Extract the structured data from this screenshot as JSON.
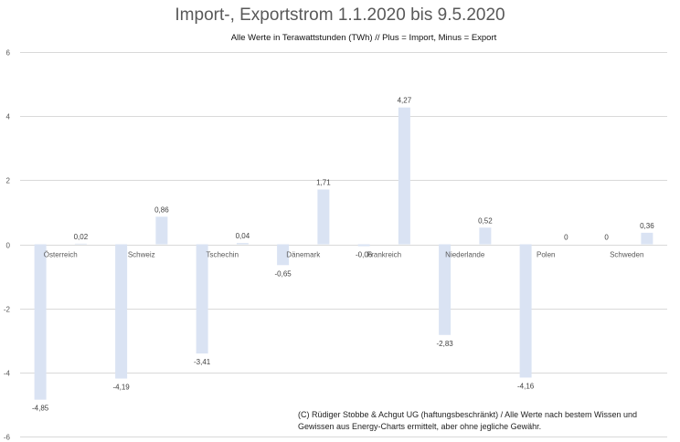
{
  "chart_data": {
    "type": "bar",
    "title": "Import-, Exportstrom 1.1.2020 bis 9.5.2020",
    "subtitle": "Alle Werte in Terawattstunden (TWh) // Plus = Import, Minus = Export",
    "xlabel": "",
    "ylabel": "",
    "ylim": [
      -6,
      6
    ],
    "yticks": [
      6,
      4,
      2,
      0,
      -2,
      -4,
      -6
    ],
    "ytick_labels": [
      "6",
      "4",
      "2",
      "0",
      "-2",
      "-4",
      "-6"
    ],
    "grid": true,
    "bar_color": "#dae3f3",
    "categories": [
      "Österreich",
      "Schweiz",
      "Tschechin",
      "Dänemark",
      "Frankreich",
      "Niederlande",
      "Polen",
      "Schweden"
    ],
    "bars": [
      {
        "category": "Österreich",
        "series": "Export",
        "value": -4.85,
        "label": "-4,85"
      },
      {
        "category": "Österreich",
        "series": "Import",
        "value": 0.02,
        "label": "0,02"
      },
      {
        "category": "Schweiz",
        "series": "Export",
        "value": -4.19,
        "label": "-4,19"
      },
      {
        "category": "Schweiz",
        "series": "Import",
        "value": 0.86,
        "label": "0,86"
      },
      {
        "category": "Tschechin",
        "series": "Export",
        "value": -3.41,
        "label": "-3,41"
      },
      {
        "category": "Tschechin",
        "series": "Import",
        "value": 0.04,
        "label": "0,04"
      },
      {
        "category": "Dänemark",
        "series": "Export",
        "value": -0.65,
        "label": "-0,65"
      },
      {
        "category": "Dänemark",
        "series": "Import",
        "value": 1.71,
        "label": "1,71"
      },
      {
        "category": "Frankreich",
        "series": "Export",
        "value": -0.06,
        "label": "-0,06"
      },
      {
        "category": "Frankreich",
        "series": "Import",
        "value": 4.27,
        "label": "4,27"
      },
      {
        "category": "Niederlande",
        "series": "Export",
        "value": -2.83,
        "label": "-2,83"
      },
      {
        "category": "Niederlande",
        "series": "Import",
        "value": 0.52,
        "label": "0,52"
      },
      {
        "category": "Polen",
        "series": "Export",
        "value": -4.16,
        "label": "-4,16"
      },
      {
        "category": "Polen",
        "series": "Import",
        "value": 0,
        "label": "0"
      },
      {
        "category": "Schweden",
        "series": "Export",
        "value": 0,
        "label": "0"
      },
      {
        "category": "Schweden",
        "series": "Import",
        "value": 0.36,
        "label": "0,36"
      }
    ],
    "annotation": "(C) Rüdiger Stobbe & Achgut UG (haftungsbeschränkt) / Alle Werte nach bestem Wissen und Gewissen aus Energy-Charts ermittelt, aber ohne jegliche Gewähr."
  }
}
